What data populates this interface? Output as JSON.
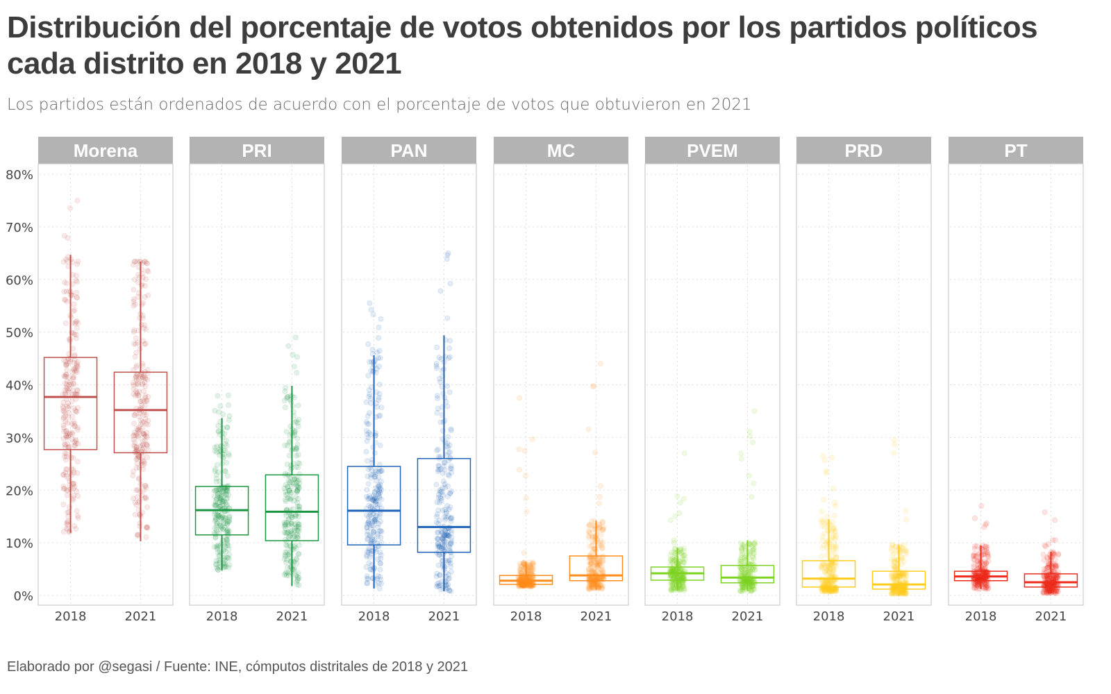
{
  "header": {
    "title": "Distribución del porcentaje de votos obtenidos por los partidos políticos cada distrito en 2018 y 2021",
    "subtitle": "Los partidos están ordenados de acuerdo con el porcentaje de votos que obtuvieron en 2021"
  },
  "caption": "Elaborado por @segasi / Fuente: INE, cómputos distritales de 2018 y 2021",
  "chart_data": {
    "type": "boxplot",
    "title": "Distribución del porcentaje de votos obtenidos por los partidos políticos cada distrito en 2018 y 2021",
    "subtitle": "Los partidos están ordenados de acuerdo con el porcentaje de votos que obtuvieron en 2021",
    "xlabel": "",
    "ylabel": "",
    "categories": [
      "2018",
      "2021"
    ],
    "ylim": [
      0,
      80
    ],
    "y_ticks": [
      0,
      10,
      20,
      30,
      40,
      50,
      60,
      70,
      80
    ],
    "y_tick_labels": [
      "0%",
      "10%",
      "20%",
      "30%",
      "40%",
      "50%",
      "60%",
      "70%",
      "80%"
    ],
    "grid": true,
    "facet_by": "partido",
    "panels": [
      {
        "name": "Morena",
        "color": "#c0504d",
        "boxes": [
          {
            "year": "2018",
            "min": 11.9,
            "q1": 27.7,
            "median": 37.7,
            "q3": 45.2,
            "max": 64.7,
            "outliers_max": 75.0
          },
          {
            "year": "2021",
            "min": 10.3,
            "q1": 27.1,
            "median": 35.2,
            "q3": 42.4,
            "max": 63.4,
            "outliers_max": 63.4
          }
        ]
      },
      {
        "name": "PRI",
        "color": "#1a9641",
        "boxes": [
          {
            "year": "2018",
            "min": 4.7,
            "q1": 11.5,
            "median": 16.2,
            "q3": 20.7,
            "max": 33.7,
            "outliers_max": 38.0
          },
          {
            "year": "2021",
            "min": 1.8,
            "q1": 10.4,
            "median": 15.9,
            "q3": 22.9,
            "max": 39.8,
            "outliers_max": 49.0
          }
        ]
      },
      {
        "name": "PAN",
        "color": "#1f63b8",
        "boxes": [
          {
            "year": "2018",
            "min": 1.3,
            "q1": 9.6,
            "median": 16.1,
            "q3": 24.5,
            "max": 45.6,
            "outliers_max": 55.5
          },
          {
            "year": "2021",
            "min": 0.8,
            "q1": 8.2,
            "median": 13.0,
            "q3": 26.0,
            "max": 49.4,
            "outliers_max": 65.0
          }
        ]
      },
      {
        "name": "MC",
        "color": "#ff8c1a",
        "boxes": [
          {
            "year": "2018",
            "min": 1.7,
            "q1": 2.1,
            "median": 2.8,
            "q3": 3.8,
            "max": 6.3,
            "outliers_max": 37.5
          },
          {
            "year": "2021",
            "min": 1.1,
            "q1": 2.8,
            "median": 3.8,
            "q3": 7.5,
            "max": 14.2,
            "outliers_max": 44.0
          }
        ]
      },
      {
        "name": "PVEM",
        "color": "#7ed321",
        "boxes": [
          {
            "year": "2018",
            "min": 0.9,
            "q1": 2.9,
            "median": 4.2,
            "q3": 5.4,
            "max": 9.1,
            "outliers_max": 27.0
          },
          {
            "year": "2021",
            "min": 0.8,
            "q1": 2.4,
            "median": 3.4,
            "q3": 5.7,
            "max": 10.5,
            "outliers_max": 35.0
          }
        ]
      },
      {
        "name": "PRD",
        "color": "#ffcc1a",
        "boxes": [
          {
            "year": "2018",
            "min": 0.7,
            "q1": 1.6,
            "median": 3.2,
            "q3": 6.6,
            "max": 14.5,
            "outliers_max": 26.5
          },
          {
            "year": "2021",
            "min": 0.3,
            "q1": 1.2,
            "median": 2.1,
            "q3": 4.6,
            "max": 9.6,
            "outliers_max": 29.5
          }
        ]
      },
      {
        "name": "PT",
        "color": "#ee2a1b",
        "boxes": [
          {
            "year": "2018",
            "min": 1.2,
            "q1": 2.8,
            "median": 3.6,
            "q3": 4.6,
            "max": 9.5,
            "outliers_max": 17.0
          },
          {
            "year": "2021",
            "min": 0.4,
            "q1": 1.6,
            "median": 2.5,
            "q3": 4.1,
            "max": 8.3,
            "outliers_max": 15.8
          }
        ]
      }
    ]
  }
}
